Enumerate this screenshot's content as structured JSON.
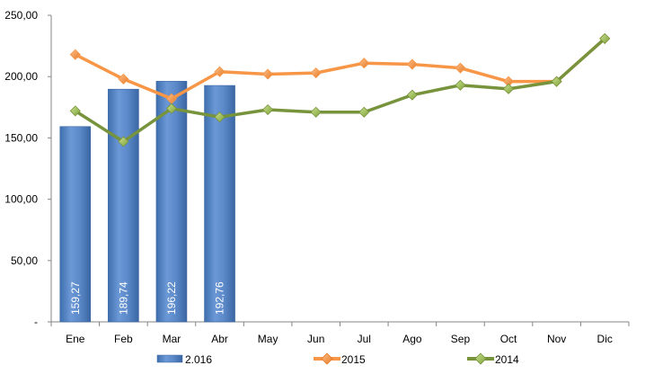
{
  "chart_data": {
    "type": "bar",
    "categories": [
      "Ene",
      "Feb",
      "Mar",
      "Abr",
      "May",
      "Jun",
      "Jul",
      "Ago",
      "Sep",
      "Oct",
      "Nov",
      "Dic"
    ],
    "ylim": [
      0,
      250
    ],
    "y_ticks": [
      "-",
      "50,00",
      "100,00",
      "150,00",
      "200,00",
      "250,00"
    ],
    "y_tick_values": [
      0,
      50,
      100,
      150,
      200,
      250
    ],
    "grid": false,
    "legend_position": "bottom",
    "bar_series": {
      "name": "2.016",
      "color": "#4F81BD",
      "values": [
        159.27,
        189.74,
        196.22,
        192.76
      ],
      "labels": [
        "159,27",
        "189,74",
        "196,22",
        "192,76"
      ]
    },
    "line_series": [
      {
        "name": "2015",
        "color": "#F79646",
        "marker_color": "#F79646",
        "values": [
          218,
          198,
          182,
          204,
          202,
          203,
          211,
          210,
          207,
          196,
          196,
          231
        ]
      },
      {
        "name": "2014",
        "color": "#77933C",
        "marker_color": "#9BBB59",
        "values": [
          172,
          147,
          174,
          167,
          173,
          171,
          171,
          185,
          193,
          190,
          196,
          231
        ]
      }
    ]
  }
}
